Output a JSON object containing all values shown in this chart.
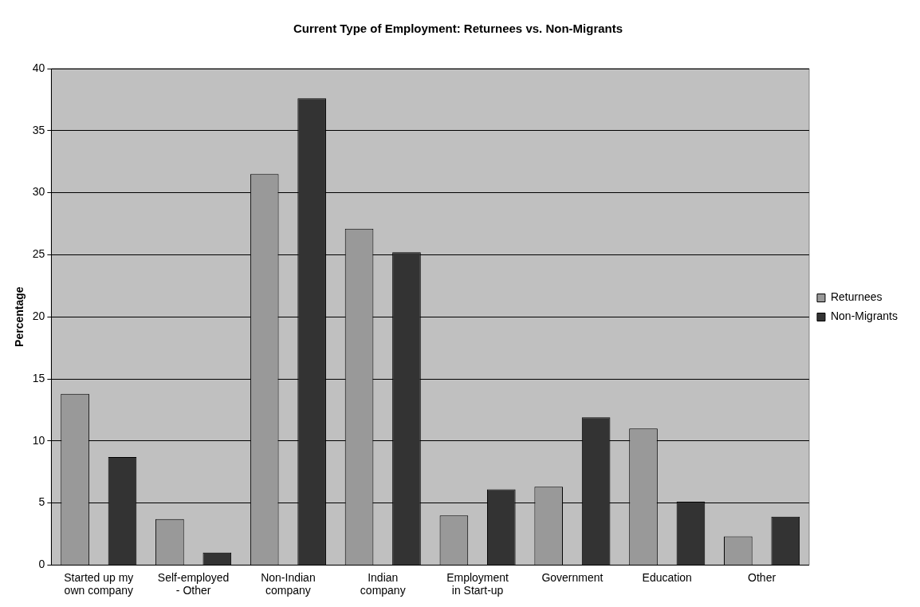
{
  "chart_data": {
    "type": "bar",
    "title": "Current Type of Employment: Returnees vs. Non-Migrants",
    "ylabel": "Percentage",
    "categories": [
      "Started up my\nown company",
      "Self-employed\n- Other",
      "Non-Indian\ncompany",
      "Indian\ncompany",
      "Employment\nin Start-up",
      "Government",
      "Education",
      "Other"
    ],
    "series": [
      {
        "name": "Returnees",
        "color": "#999999",
        "values": [
          13.8,
          3.7,
          31.5,
          27.1,
          4.0,
          6.3,
          11.0,
          2.3
        ]
      },
      {
        "name": "Non-Migrants",
        "color": "#333333",
        "values": [
          8.7,
          1.0,
          37.6,
          25.2,
          6.1,
          11.9,
          5.1,
          3.9
        ]
      }
    ],
    "ylim": [
      0,
      40
    ],
    "yticks": [
      0,
      5,
      10,
      15,
      20,
      25,
      30,
      35,
      40
    ],
    "grid": "y",
    "legend": "right"
  }
}
